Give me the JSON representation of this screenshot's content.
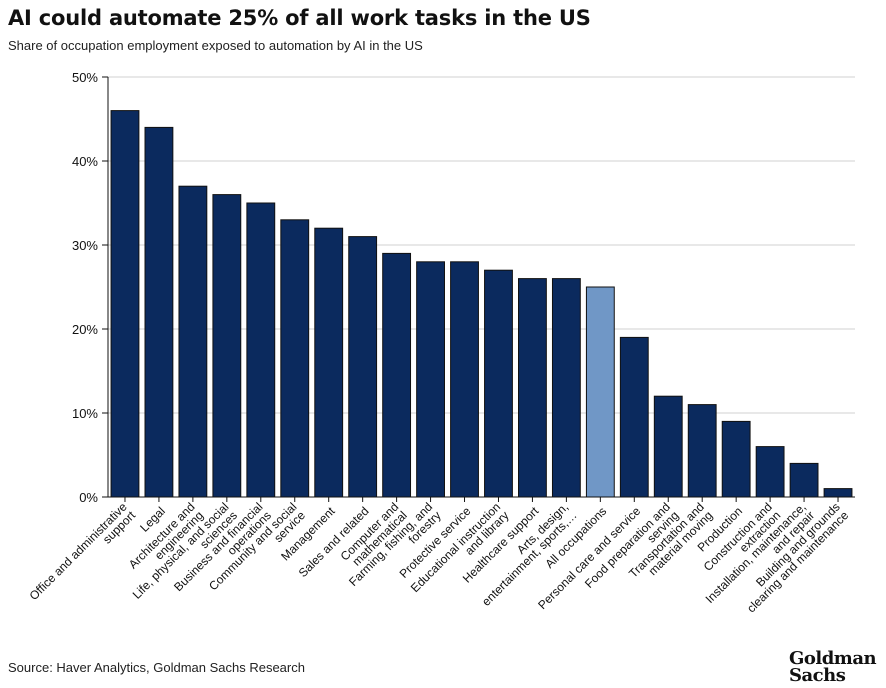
{
  "title": "AI could automate 25% of all work tasks in the US",
  "subtitle": "Share of occupation employment exposed to automation by AI in the US",
  "source": "Source: Haver Analytics, Goldman Sachs Research",
  "logo": "Goldman Sachs",
  "colors": {
    "bar": "#0b2a5e",
    "highlight": "#7097c6",
    "grid": "#d0d0d0"
  },
  "chart_data": {
    "type": "bar",
    "ylim": [
      0,
      50
    ],
    "yticks": [
      0,
      10,
      20,
      30,
      40,
      50
    ],
    "ytick_labels": [
      "0%",
      "10%",
      "20%",
      "30%",
      "40%",
      "50%"
    ],
    "grid": true,
    "categories": [
      "Office and administrative support",
      "Legal",
      "Architecture and engineering",
      "Life, physical, and social sciences",
      "Business and financial operations",
      "Community and social service",
      "Management",
      "Sales and related",
      "Computer and mathematical",
      "Farming, fishing, and forestry",
      "Protective service",
      "Educational instruction and library",
      "Healthcare support",
      "Arts, design, entertainment, sports,…",
      "All occupations",
      "Personal care and service",
      "Food preparation and serving",
      "Transportation and material moving",
      "Production",
      "Construction and extraction",
      "Installation, maintenance, and repair",
      "Building and grounds clearing and maintenance"
    ],
    "label_lines": [
      [
        "Office and administrative",
        "support"
      ],
      [
        "Legal"
      ],
      [
        "Architecture and",
        "engineering"
      ],
      [
        "Life, physical, and social",
        "sciences"
      ],
      [
        "Business and financial",
        "operations"
      ],
      [
        "Community and social",
        "service"
      ],
      [
        "Management"
      ],
      [
        "Sales and related"
      ],
      [
        "Computer and",
        "mathematical"
      ],
      [
        "Farming, fishing, and",
        "forestry"
      ],
      [
        "Protective service"
      ],
      [
        "Educational instruction",
        "and library"
      ],
      [
        "Healthcare support"
      ],
      [
        "Arts, design,",
        "entertainment, sports,…"
      ],
      [
        "All occupations"
      ],
      [
        "Personal care and service"
      ],
      [
        "Food preparation and",
        "serving"
      ],
      [
        "Transportation and",
        "material moving"
      ],
      [
        "Production"
      ],
      [
        "Construction and",
        "extraction"
      ],
      [
        "Installation, maintenance,",
        "and repair"
      ],
      [
        "Building and grounds",
        "clearing and maintenance"
      ]
    ],
    "values": [
      46,
      44,
      37,
      36,
      35,
      33,
      32,
      31,
      29,
      28,
      28,
      27,
      26,
      26,
      25,
      19,
      12,
      11,
      9,
      6,
      4,
      1
    ],
    "highlight_category": "All occupations"
  }
}
